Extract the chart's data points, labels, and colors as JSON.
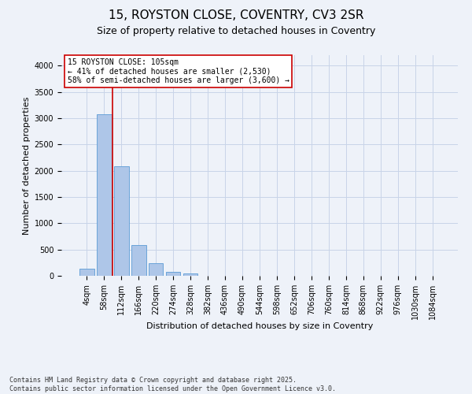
{
  "title1": "15, ROYSTON CLOSE, COVENTRY, CV3 2SR",
  "title2": "Size of property relative to detached houses in Coventry",
  "xlabel": "Distribution of detached houses by size in Coventry",
  "ylabel": "Number of detached properties",
  "categories": [
    "4sqm",
    "58sqm",
    "112sqm",
    "166sqm",
    "220sqm",
    "274sqm",
    "328sqm",
    "382sqm",
    "436sqm",
    "490sqm",
    "544sqm",
    "598sqm",
    "652sqm",
    "706sqm",
    "760sqm",
    "814sqm",
    "868sqm",
    "922sqm",
    "976sqm",
    "1030sqm",
    "1084sqm"
  ],
  "values": [
    130,
    3080,
    2080,
    580,
    240,
    80,
    40,
    0,
    0,
    0,
    0,
    0,
    0,
    0,
    0,
    0,
    0,
    0,
    0,
    0,
    0
  ],
  "bar_color": "#aec6e8",
  "bar_edge_color": "#5b9bd5",
  "grid_color": "#c8d4e8",
  "background_color": "#eef2f9",
  "vline_x": 1.5,
  "vline_color": "#cc0000",
  "annotation_text": "15 ROYSTON CLOSE: 105sqm\n← 41% of detached houses are smaller (2,530)\n58% of semi-detached houses are larger (3,600) →",
  "annotation_box_color": "#ffffff",
  "annotation_box_edge_color": "#cc0000",
  "footnote1": "Contains HM Land Registry data © Crown copyright and database right 2025.",
  "footnote2": "Contains public sector information licensed under the Open Government Licence v3.0.",
  "ylim": [
    0,
    4200
  ],
  "yticks": [
    0,
    500,
    1000,
    1500,
    2000,
    2500,
    3000,
    3500,
    4000
  ],
  "title1_fontsize": 11,
  "title2_fontsize": 9,
  "axis_label_fontsize": 8,
  "tick_fontsize": 7,
  "annotation_fontsize": 7,
  "footnote_fontsize": 6
}
